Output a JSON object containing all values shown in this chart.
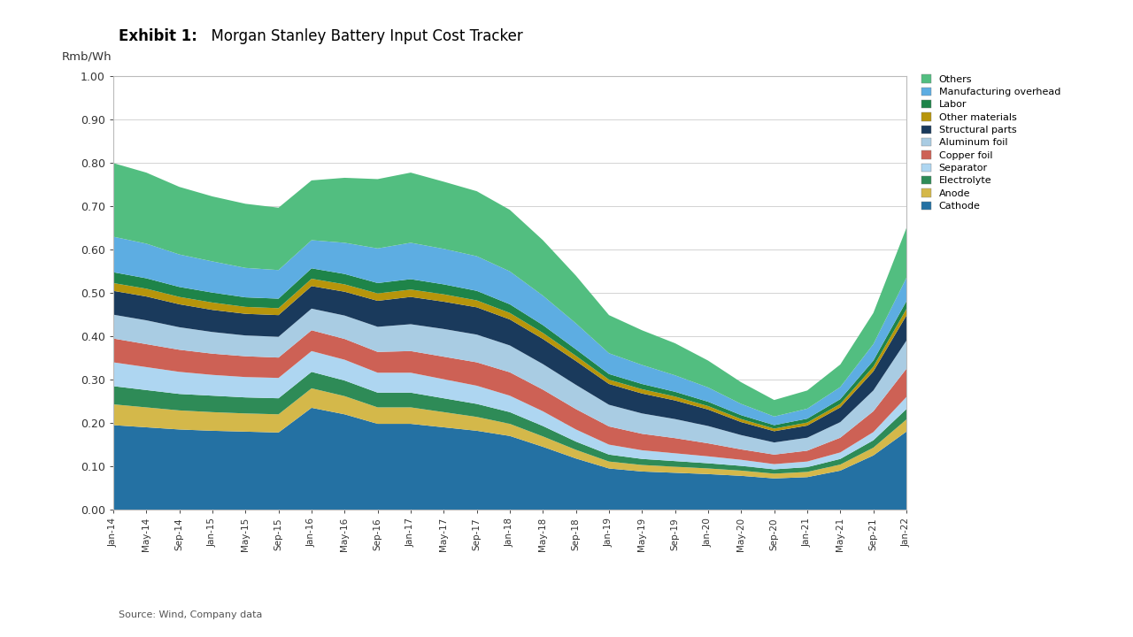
{
  "title_bold": "Exhibit 1:",
  "title_normal": "  Morgan Stanley Battery Input Cost Tracker",
  "ylabel": "Rmb/Wh",
  "source": "Source: Wind, Company data",
  "ylim": [
    0.0,
    1.0
  ],
  "yticks": [
    0.0,
    0.1,
    0.2,
    0.3,
    0.4,
    0.5,
    0.6,
    0.7,
    0.8,
    0.9,
    1.0
  ],
  "series_names": [
    "Cathode",
    "Anode",
    "Electrolyte",
    "Separator",
    "Copper foil",
    "Aluminum foil",
    "Structural parts",
    "Other materials",
    "Labor",
    "Manufacturing overhead",
    "Others"
  ],
  "colors": [
    "#2471a3",
    "#d4b84a",
    "#2e8b57",
    "#aed6f1",
    "#cd6155",
    "#a9cce3",
    "#1a3a5c",
    "#b7950b",
    "#1e8449",
    "#5dade2",
    "#52be80"
  ],
  "x_labels": [
    "Jan-14",
    "May-14",
    "Sep-14",
    "Jan-15",
    "May-15",
    "Sep-15",
    "Jan-16",
    "May-16",
    "Sep-16",
    "Jan-17",
    "May-17",
    "Sep-17",
    "Jan-18",
    "May-18",
    "Sep-18",
    "Jan-19",
    "May-19",
    "Sep-19",
    "Jan-20",
    "May-20",
    "Sep-20",
    "Jan-21",
    "May-21",
    "Sep-21",
    "Jan-22"
  ],
  "data": {
    "Cathode": [
      0.195,
      0.19,
      0.185,
      0.182,
      0.18,
      0.178,
      0.235,
      0.22,
      0.198,
      0.198,
      0.19,
      0.182,
      0.17,
      0.145,
      0.118,
      0.095,
      0.088,
      0.085,
      0.082,
      0.078,
      0.072,
      0.075,
      0.09,
      0.125,
      0.18
    ],
    "Anode": [
      0.048,
      0.046,
      0.044,
      0.043,
      0.042,
      0.042,
      0.045,
      0.042,
      0.038,
      0.038,
      0.035,
      0.032,
      0.028,
      0.024,
      0.02,
      0.016,
      0.015,
      0.014,
      0.013,
      0.012,
      0.011,
      0.012,
      0.014,
      0.018,
      0.028
    ],
    "Electrolyte": [
      0.042,
      0.04,
      0.038,
      0.038,
      0.037,
      0.037,
      0.038,
      0.036,
      0.034,
      0.034,
      0.032,
      0.03,
      0.027,
      0.024,
      0.019,
      0.016,
      0.014,
      0.013,
      0.012,
      0.011,
      0.01,
      0.011,
      0.013,
      0.017,
      0.024
    ],
    "Separator": [
      0.055,
      0.053,
      0.051,
      0.048,
      0.047,
      0.047,
      0.048,
      0.048,
      0.046,
      0.046,
      0.044,
      0.042,
      0.038,
      0.034,
      0.028,
      0.023,
      0.02,
      0.018,
      0.016,
      0.014,
      0.012,
      0.013,
      0.015,
      0.019,
      0.028
    ],
    "Copper foil": [
      0.055,
      0.053,
      0.051,
      0.049,
      0.048,
      0.047,
      0.048,
      0.048,
      0.048,
      0.05,
      0.052,
      0.054,
      0.054,
      0.05,
      0.047,
      0.042,
      0.038,
      0.035,
      0.03,
      0.024,
      0.022,
      0.025,
      0.034,
      0.048,
      0.065
    ],
    "Aluminum foil": [
      0.055,
      0.055,
      0.052,
      0.05,
      0.048,
      0.048,
      0.05,
      0.054,
      0.058,
      0.062,
      0.064,
      0.064,
      0.062,
      0.059,
      0.056,
      0.05,
      0.047,
      0.044,
      0.04,
      0.033,
      0.028,
      0.03,
      0.036,
      0.048,
      0.065
    ],
    "Structural parts": [
      0.055,
      0.055,
      0.053,
      0.051,
      0.05,
      0.05,
      0.052,
      0.055,
      0.06,
      0.063,
      0.063,
      0.063,
      0.06,
      0.058,
      0.055,
      0.048,
      0.046,
      0.043,
      0.038,
      0.03,
      0.026,
      0.028,
      0.034,
      0.044,
      0.058
    ],
    "Other materials": [
      0.018,
      0.018,
      0.017,
      0.017,
      0.016,
      0.016,
      0.017,
      0.017,
      0.017,
      0.017,
      0.017,
      0.016,
      0.015,
      0.014,
      0.012,
      0.01,
      0.01,
      0.009,
      0.008,
      0.007,
      0.006,
      0.007,
      0.008,
      0.011,
      0.015
    ],
    "Labor": [
      0.025,
      0.024,
      0.023,
      0.023,
      0.022,
      0.022,
      0.024,
      0.024,
      0.024,
      0.024,
      0.023,
      0.022,
      0.02,
      0.018,
      0.015,
      0.013,
      0.012,
      0.011,
      0.01,
      0.009,
      0.008,
      0.009,
      0.011,
      0.014,
      0.018
    ],
    "Manufacturing overhead": [
      0.082,
      0.08,
      0.075,
      0.072,
      0.068,
      0.066,
      0.065,
      0.072,
      0.08,
      0.084,
      0.082,
      0.08,
      0.076,
      0.068,
      0.06,
      0.048,
      0.044,
      0.038,
      0.033,
      0.026,
      0.02,
      0.023,
      0.028,
      0.038,
      0.054
    ],
    "Others": [
      0.17,
      0.164,
      0.156,
      0.15,
      0.148,
      0.144,
      0.138,
      0.15,
      0.16,
      0.162,
      0.155,
      0.15,
      0.142,
      0.128,
      0.11,
      0.088,
      0.08,
      0.074,
      0.062,
      0.05,
      0.038,
      0.042,
      0.052,
      0.072,
      0.115
    ]
  }
}
